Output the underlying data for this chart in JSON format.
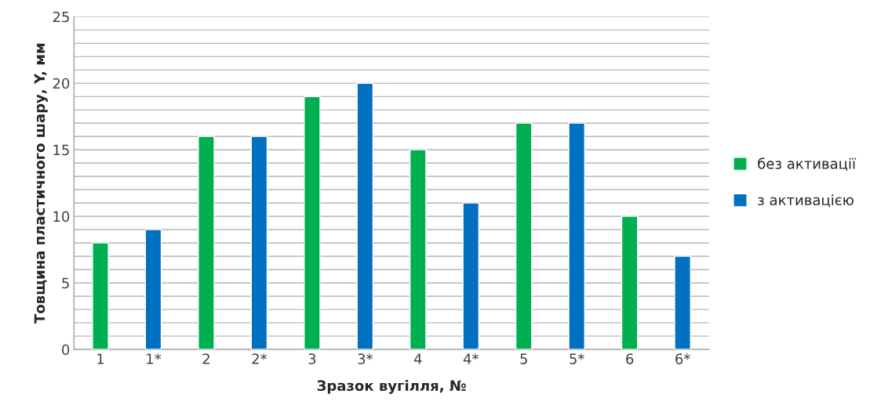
{
  "chart_data": {
    "type": "bar",
    "categories": [
      "1",
      "1*",
      "2",
      "2*",
      "3",
      "3*",
      "4",
      "4*",
      "5",
      "5*",
      "6",
      "6*"
    ],
    "series": [
      {
        "name": "без активації",
        "color": "#00b050",
        "values": [
          8,
          null,
          16,
          null,
          19,
          null,
          15,
          null,
          17,
          null,
          10,
          null
        ]
      },
      {
        "name": "з активацією",
        "color": "#0070c0",
        "values": [
          null,
          9,
          null,
          16,
          null,
          20,
          null,
          11,
          null,
          17,
          null,
          7
        ]
      }
    ],
    "xlabel": "Зразок вугілля, №",
    "ylabel": "Товщина пластичного шару, Y, мм",
    "ylim": [
      0,
      25
    ],
    "yticks": [
      0,
      {
        "value": 1,
        "label": null
      },
      {
        "value": 2,
        "label": null
      },
      {
        "value": 3,
        "label": null
      },
      {
        "value": 4,
        "label": null
      },
      5,
      {
        "value": 6,
        "label": null
      },
      {
        "value": 7,
        "label": null
      },
      {
        "value": 8,
        "label": null
      },
      {
        "value": 9,
        "label": null
      },
      10,
      {
        "value": 11,
        "label": null
      },
      {
        "value": 12,
        "label": null
      },
      {
        "value": 13,
        "label": null
      },
      {
        "value": 14,
        "label": null
      },
      15,
      {
        "value": 16,
        "label": null
      },
      {
        "value": 17,
        "label": null
      },
      {
        "value": 18,
        "label": null
      },
      {
        "value": 19,
        "label": null
      },
      20,
      {
        "value": 21,
        "label": null
      },
      {
        "value": 22,
        "label": null
      },
      {
        "value": 23,
        "label": null
      },
      {
        "value": 24,
        "label": null
      },
      25
    ],
    "grid": "y",
    "legend": "right"
  }
}
